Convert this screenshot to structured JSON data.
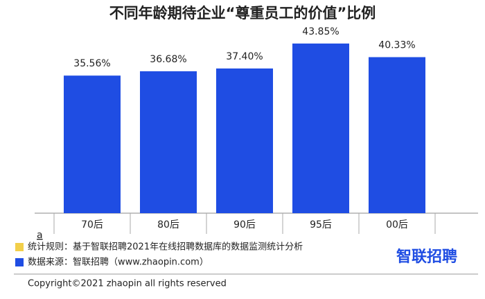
{
  "chart_data": {
    "type": "bar",
    "title": "不同年龄期待企业“尊重员工的价值”比例",
    "categories": [
      "70后",
      "80后",
      "90后",
      "95后",
      "00后"
    ],
    "values": [
      35.56,
      36.68,
      37.4,
      43.85,
      40.33
    ],
    "value_labels": [
      "35.56%",
      "36.68%",
      "37.40%",
      "43.85%",
      "40.33%"
    ],
    "color": "#1f4de3",
    "footnote_marker": "a",
    "notes": [
      {
        "text": "统计规则：基于智联招聘2021年在线招聘数据库的数据监测统计分析",
        "color": "#f2cf4a"
      },
      {
        "text": "数据来源：智联招聘（www.zhaopin.com）",
        "color": "#1f4de3"
      }
    ],
    "logo": "智联招聘",
    "copyright": "Copyright©2021 zhaopin all rights reserved"
  }
}
